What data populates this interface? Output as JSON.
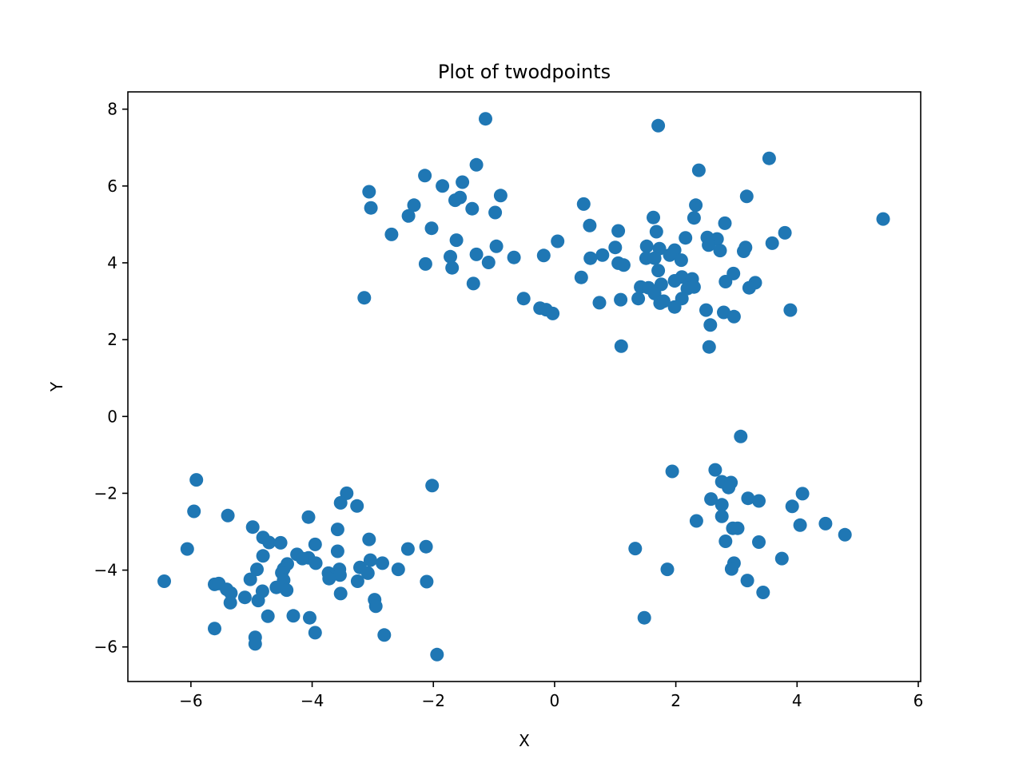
{
  "chart_data": {
    "type": "scatter",
    "title": "Plot of twodpoints",
    "xlabel": "X",
    "ylabel": "Y",
    "xlim": [
      -7.04,
      6.04
    ],
    "ylim": [
      -6.9,
      8.45
    ],
    "xticks": [
      -6,
      -4,
      -2,
      0,
      2,
      4,
      6
    ],
    "yticks": [
      -6,
      -4,
      -2,
      0,
      2,
      4,
      6,
      8
    ],
    "xtick_labels": [
      "−6",
      "−4",
      "−2",
      "0",
      "2",
      "4",
      "6"
    ],
    "ytick_labels": [
      "−6",
      "−4",
      "−2",
      "0",
      "2",
      "4",
      "6",
      "8"
    ],
    "grid": false,
    "color": "#1f77b4",
    "points": [
      [
        -1.14,
        7.75
      ],
      [
        1.71,
        7.57
      ],
      [
        3.54,
        6.72
      ],
      [
        2.38,
        6.41
      ],
      [
        -1.29,
        6.55
      ],
      [
        -2.14,
        6.27
      ],
      [
        -1.52,
        6.1
      ],
      [
        -3.06,
        5.85
      ],
      [
        -1.85,
        6.0
      ],
      [
        -0.89,
        5.75
      ],
      [
        -1.56,
        5.7
      ],
      [
        -1.64,
        5.63
      ],
      [
        3.17,
        5.73
      ],
      [
        -2.32,
        5.5
      ],
      [
        -3.03,
        5.43
      ],
      [
        -1.36,
        5.41
      ],
      [
        -0.98,
        5.31
      ],
      [
        0.48,
        5.53
      ],
      [
        2.33,
        5.5
      ],
      [
        -2.41,
        5.22
      ],
      [
        1.63,
        5.18
      ],
      [
        2.3,
        5.17
      ],
      [
        5.42,
        5.14
      ],
      [
        0.58,
        4.97
      ],
      [
        2.81,
        5.03
      ],
      [
        -2.03,
        4.9
      ],
      [
        1.05,
        4.83
      ],
      [
        1.68,
        4.81
      ],
      [
        3.8,
        4.78
      ],
      [
        -2.69,
        4.74
      ],
      [
        2.52,
        4.66
      ],
      [
        2.68,
        4.62
      ],
      [
        2.16,
        4.65
      ],
      [
        -1.62,
        4.59
      ],
      [
        0.05,
        4.56
      ],
      [
        -0.96,
        4.43
      ],
      [
        1.52,
        4.43
      ],
      [
        2.54,
        4.46
      ],
      [
        3.59,
        4.51
      ],
      [
        1.0,
        4.4
      ],
      [
        3.15,
        4.4
      ],
      [
        1.73,
        4.37
      ],
      [
        2.73,
        4.32
      ],
      [
        3.12,
        4.3
      ],
      [
        1.98,
        4.33
      ],
      [
        1.9,
        4.2
      ],
      [
        0.79,
        4.2
      ],
      [
        -1.72,
        4.16
      ],
      [
        -1.29,
        4.22
      ],
      [
        -0.67,
        4.14
      ],
      [
        -0.18,
        4.19
      ],
      [
        0.59,
        4.12
      ],
      [
        1.51,
        4.12
      ],
      [
        1.65,
        4.12
      ],
      [
        2.09,
        4.07
      ],
      [
        1.05,
        3.99
      ],
      [
        1.14,
        3.94
      ],
      [
        -2.13,
        3.97
      ],
      [
        -1.69,
        3.87
      ],
      [
        -1.09,
        4.01
      ],
      [
        1.71,
        3.8
      ],
      [
        2.95,
        3.72
      ],
      [
        0.44,
        3.62
      ],
      [
        2.1,
        3.63
      ],
      [
        2.27,
        3.58
      ],
      [
        1.98,
        3.53
      ],
      [
        2.82,
        3.51
      ],
      [
        3.31,
        3.48
      ],
      [
        3.21,
        3.35
      ],
      [
        -1.34,
        3.46
      ],
      [
        1.76,
        3.44
      ],
      [
        1.42,
        3.37
      ],
      [
        1.55,
        3.35
      ],
      [
        2.3,
        3.37
      ],
      [
        2.19,
        3.33
      ],
      [
        1.65,
        3.2
      ],
      [
        -3.14,
        3.09
      ],
      [
        1.38,
        3.07
      ],
      [
        1.09,
        3.04
      ],
      [
        2.1,
        3.07
      ],
      [
        -0.51,
        3.07
      ],
      [
        1.74,
        2.95
      ],
      [
        1.8,
        3.0
      ],
      [
        0.74,
        2.96
      ],
      [
        1.98,
        2.85
      ],
      [
        -0.24,
        2.82
      ],
      [
        -0.14,
        2.78
      ],
      [
        -0.03,
        2.68
      ],
      [
        2.5,
        2.77
      ],
      [
        3.89,
        2.77
      ],
      [
        2.79,
        2.71
      ],
      [
        2.96,
        2.6
      ],
      [
        2.57,
        2.38
      ],
      [
        1.1,
        1.83
      ],
      [
        2.55,
        1.81
      ],
      [
        3.07,
        -0.52
      ],
      [
        2.65,
        -1.39
      ],
      [
        1.94,
        -1.43
      ],
      [
        2.76,
        -1.7
      ],
      [
        2.91,
        -1.72
      ],
      [
        2.87,
        -1.85
      ],
      [
        4.09,
        -2.01
      ],
      [
        3.19,
        -2.13
      ],
      [
        3.37,
        -2.2
      ],
      [
        2.58,
        -2.15
      ],
      [
        2.76,
        -2.3
      ],
      [
        3.92,
        -2.34
      ],
      [
        2.76,
        -2.6
      ],
      [
        2.34,
        -2.72
      ],
      [
        4.47,
        -2.79
      ],
      [
        4.05,
        -2.83
      ],
      [
        2.94,
        -2.91
      ],
      [
        3.02,
        -2.91
      ],
      [
        4.79,
        -3.08
      ],
      [
        2.82,
        -3.25
      ],
      [
        3.37,
        -3.27
      ],
      [
        1.33,
        -3.44
      ],
      [
        3.75,
        -3.7
      ],
      [
        2.96,
        -3.82
      ],
      [
        2.92,
        -3.97
      ],
      [
        1.86,
        -3.98
      ],
      [
        3.18,
        -4.27
      ],
      [
        3.44,
        -4.58
      ],
      [
        1.48,
        -5.24
      ],
      [
        -5.91,
        -1.65
      ],
      [
        -2.02,
        -1.8
      ],
      [
        -3.43,
        -2.0
      ],
      [
        -3.53,
        -2.25
      ],
      [
        -3.26,
        -2.33
      ],
      [
        -5.95,
        -2.47
      ],
      [
        -5.39,
        -2.58
      ],
      [
        -4.06,
        -2.62
      ],
      [
        -4.98,
        -2.88
      ],
      [
        -3.58,
        -2.94
      ],
      [
        -4.81,
        -3.15
      ],
      [
        -4.71,
        -3.28
      ],
      [
        -3.06,
        -3.2
      ],
      [
        -4.52,
        -3.29
      ],
      [
        -3.95,
        -3.33
      ],
      [
        -2.12,
        -3.39
      ],
      [
        -2.42,
        -3.45
      ],
      [
        -6.06,
        -3.45
      ],
      [
        -4.25,
        -3.59
      ],
      [
        -3.58,
        -3.51
      ],
      [
        -4.81,
        -3.63
      ],
      [
        -4.06,
        -3.68
      ],
      [
        -4.16,
        -3.7
      ],
      [
        -3.04,
        -3.74
      ],
      [
        -3.94,
        -3.82
      ],
      [
        -4.41,
        -3.84
      ],
      [
        -2.84,
        -3.82
      ],
      [
        -4.91,
        -3.98
      ],
      [
        -4.47,
        -3.97
      ],
      [
        -2.58,
        -3.98
      ],
      [
        -3.55,
        -3.98
      ],
      [
        -3.21,
        -3.93
      ],
      [
        -3.08,
        -4.08
      ],
      [
        -4.5,
        -4.07
      ],
      [
        -3.73,
        -4.08
      ],
      [
        -3.54,
        -4.13
      ],
      [
        -3.72,
        -4.22
      ],
      [
        -5.02,
        -4.24
      ],
      [
        -3.25,
        -4.29
      ],
      [
        -6.44,
        -4.29
      ],
      [
        -2.11,
        -4.3
      ],
      [
        -4.47,
        -4.26
      ],
      [
        -5.61,
        -4.37
      ],
      [
        -5.54,
        -4.35
      ],
      [
        -5.41,
        -4.5
      ],
      [
        -4.59,
        -4.45
      ],
      [
        -4.42,
        -4.52
      ],
      [
        -4.82,
        -4.55
      ],
      [
        -5.34,
        -4.6
      ],
      [
        -3.53,
        -4.61
      ],
      [
        -5.11,
        -4.71
      ],
      [
        -2.97,
        -4.77
      ],
      [
        -4.89,
        -4.79
      ],
      [
        -5.35,
        -4.85
      ],
      [
        -2.95,
        -4.94
      ],
      [
        -4.31,
        -5.19
      ],
      [
        -4.73,
        -5.2
      ],
      [
        -4.04,
        -5.24
      ],
      [
        -5.61,
        -5.52
      ],
      [
        -3.95,
        -5.63
      ],
      [
        -2.81,
        -5.69
      ],
      [
        -4.94,
        -5.75
      ],
      [
        -4.94,
        -5.92
      ],
      [
        -1.94,
        -6.2
      ]
    ]
  }
}
